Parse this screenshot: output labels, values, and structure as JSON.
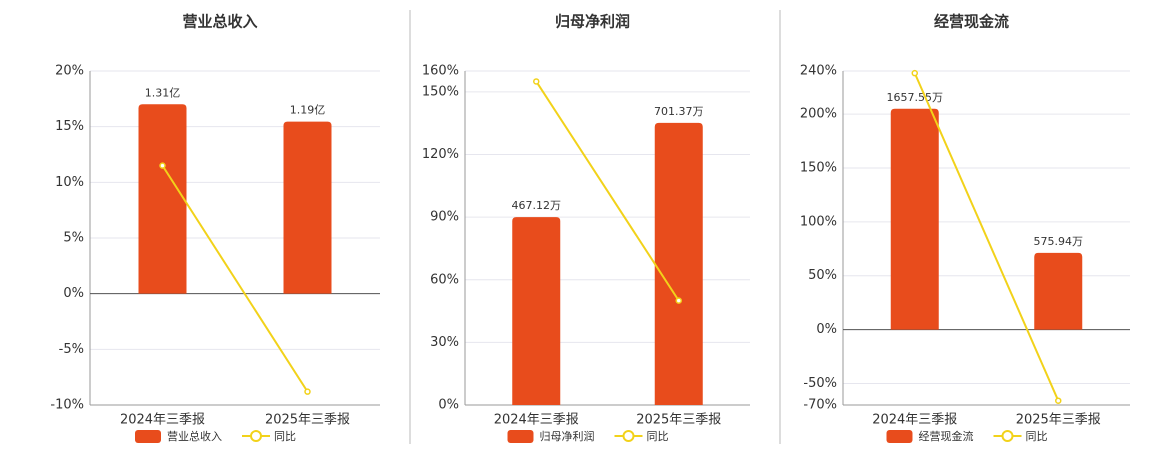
{
  "chart_data": [
    {
      "type": "bar",
      "title": "营业总收入",
      "categories": [
        "2024年三季报",
        "2025年三季报"
      ],
      "ylim": [
        -10,
        20
      ],
      "yticks": [
        {
          "value": -10,
          "label": "-10%"
        },
        {
          "value": -5,
          "label": "-5%"
        },
        {
          "value": 0,
          "label": "0%"
        },
        {
          "value": 5,
          "label": "5%"
        },
        {
          "value": 10,
          "label": "10%"
        },
        {
          "value": 15,
          "label": "15%"
        },
        {
          "value": 20,
          "label": "20%"
        }
      ],
      "y2lim": [
        -0.77,
        1.54
      ],
      "grid": true,
      "series": [
        {
          "name": "营业总收入",
          "color": "#e84c1c",
          "axis": "y2",
          "values": [
            1.31,
            1.19
          ],
          "value_labels": [
            "1.31亿",
            "1.19亿"
          ]
        },
        {
          "name": "同比",
          "type": "line",
          "color": "#f2d21a",
          "values": [
            11.5,
            -8.8
          ]
        }
      ]
    },
    {
      "type": "bar",
      "title": "归母净利润",
      "categories": [
        "2024年三季报",
        "2025年三季报"
      ],
      "ylim": [
        0,
        160
      ],
      "yticks": [
        {
          "value": 0,
          "label": "0%"
        },
        {
          "value": 30,
          "label": "30%"
        },
        {
          "value": 60,
          "label": "60%"
        },
        {
          "value": 90,
          "label": "90%"
        },
        {
          "value": 120,
          "label": "120%"
        },
        {
          "value": 150,
          "label": "150%"
        },
        {
          "value": 160,
          "label": "160%"
        }
      ],
      "y2lim": [
        0,
        830.4
      ],
      "grid": true,
      "series": [
        {
          "name": "归母净利润",
          "color": "#e84c1c",
          "axis": "y2",
          "values": [
            467.12,
            701.37
          ],
          "value_labels": [
            "467.12万",
            "701.37万"
          ]
        },
        {
          "name": "同比",
          "type": "line",
          "color": "#f2d21a",
          "values": [
            155,
            50
          ]
        }
      ]
    },
    {
      "type": "bar",
      "title": "经营现金流",
      "categories": [
        "2024年三季报",
        "2025年三季报"
      ],
      "ylim": [
        -70,
        240
      ],
      "yticks": [
        {
          "value": -70,
          "label": "-70%"
        },
        {
          "value": -50,
          "label": "-50%"
        },
        {
          "value": 0,
          "label": "0%"
        },
        {
          "value": 50,
          "label": "50%"
        },
        {
          "value": 100,
          "label": "100%"
        },
        {
          "value": 150,
          "label": "150%"
        },
        {
          "value": 200,
          "label": "200%"
        },
        {
          "value": 240,
          "label": "240%"
        }
      ],
      "y2lim": [
        -566,
        1941
      ],
      "grid": true,
      "series": [
        {
          "name": "经营现金流",
          "color": "#e84c1c",
          "axis": "y2",
          "values": [
            1657.55,
            575.94
          ],
          "value_labels": [
            "1657.55万",
            "575.94万"
          ]
        },
        {
          "name": "同比",
          "type": "line",
          "color": "#f2d21a",
          "values": [
            238,
            -66
          ]
        }
      ]
    }
  ]
}
